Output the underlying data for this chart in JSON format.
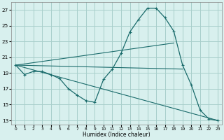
{
  "xlabel": "Humidex (Indice chaleur)",
  "xlim": [
    -0.5,
    23.5
  ],
  "ylim": [
    12.5,
    28.0
  ],
  "yticks": [
    13,
    15,
    17,
    19,
    21,
    23,
    25,
    27
  ],
  "xticks": [
    0,
    1,
    2,
    3,
    4,
    5,
    6,
    7,
    8,
    9,
    10,
    11,
    12,
    13,
    14,
    15,
    16,
    17,
    18,
    19,
    20,
    21,
    22,
    23
  ],
  "bg_color": "#d8f0ee",
  "grid_color": "#a8ceca",
  "line_color": "#1a6b6b",
  "main_x": [
    0,
    1,
    2,
    3,
    4,
    5,
    6,
    7,
    8,
    9,
    10,
    11,
    12,
    13,
    14,
    15,
    16,
    17,
    18,
    19,
    20,
    21,
    22,
    23
  ],
  "main_y": [
    20.0,
    18.8,
    19.2,
    19.2,
    18.8,
    18.3,
    17.0,
    16.2,
    15.5,
    15.3,
    18.2,
    19.5,
    21.5,
    24.2,
    25.8,
    27.2,
    27.2,
    26.0,
    24.3,
    20.0,
    17.5,
    14.3,
    13.2,
    13.0
  ],
  "line1_x": [
    0,
    18
  ],
  "line1_y": [
    20.0,
    22.8
  ],
  "line2_x": [
    0,
    19
  ],
  "line2_y": [
    20.0,
    19.5
  ],
  "line3_x": [
    0,
    23
  ],
  "line3_y": [
    20.0,
    13.0
  ]
}
